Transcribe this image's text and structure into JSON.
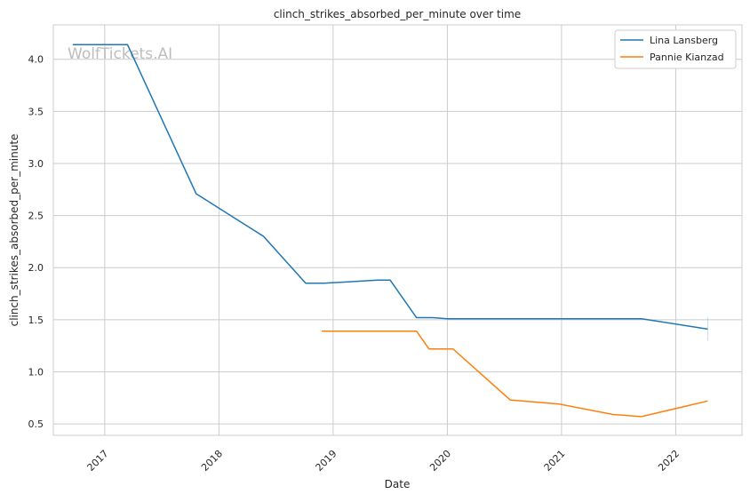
{
  "chart_data": {
    "type": "line",
    "title": "clinch_strikes_absorbed_per_minute over time",
    "xlabel": "Date",
    "ylabel": "clinch_strikes_absorbed_per_minute",
    "xlim": [
      2016.55,
      2022.58
    ],
    "ylim": [
      0.39,
      4.33
    ],
    "x_ticks": [
      2017,
      2018,
      2019,
      2020,
      2021,
      2022
    ],
    "x_tick_labels": [
      "2017",
      "2018",
      "2019",
      "2020",
      "2021",
      "2022"
    ],
    "y_ticks": [
      0.5,
      1.0,
      1.5,
      2.0,
      2.5,
      3.0,
      3.5,
      4.0
    ],
    "y_tick_labels": [
      "0.5",
      "1.0",
      "1.5",
      "2.0",
      "2.5",
      "3.0",
      "3.5",
      "4.0"
    ],
    "grid": true,
    "legend_position": "top-right",
    "watermark": "WolfTickets.AI",
    "series": [
      {
        "name": "Lina Lansberg",
        "color": "#1f77b4",
        "x": [
          2016.72,
          2017.2,
          2017.8,
          2018.39,
          2018.76,
          2018.92,
          2019.39,
          2019.5,
          2019.73,
          2019.87,
          2020.0,
          2021.7,
          2022.28
        ],
        "y": [
          4.14,
          4.14,
          2.71,
          2.3,
          1.85,
          1.85,
          1.88,
          1.88,
          1.52,
          1.52,
          1.51,
          1.51,
          1.41
        ],
        "band_end": [
          1.3,
          1.52
        ]
      },
      {
        "name": "Pannie Kianzad",
        "color": "#ff7f0e",
        "x": [
          2018.9,
          2019.73,
          2019.84,
          2020.05,
          2020.55,
          2020.98,
          2021.45,
          2021.7,
          2022.28
        ],
        "y": [
          1.39,
          1.39,
          1.22,
          1.22,
          0.73,
          0.69,
          0.59,
          0.57,
          0.72
        ]
      }
    ]
  }
}
